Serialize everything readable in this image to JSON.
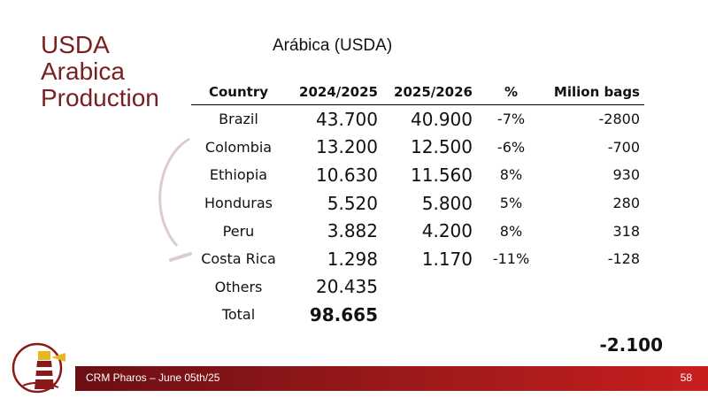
{
  "slide": {
    "title": "USDA Arabica Production",
    "subtitle": "Arábica (USDA)"
  },
  "table": {
    "headers": [
      "Country",
      "2024/2025",
      "2025/2026",
      "%",
      "Milion bags"
    ],
    "rows": [
      {
        "country": "Brazil",
        "y2024": "43.700",
        "y2025": "40.900",
        "pct": "-7%",
        "mbags": "-2800"
      },
      {
        "country": "Colombia",
        "y2024": "13.200",
        "y2025": "12.500",
        "pct": "-6%",
        "mbags": "-700"
      },
      {
        "country": "Ethiopia",
        "y2024": "10.630",
        "y2025": "11.560",
        "pct": "8%",
        "mbags": "930"
      },
      {
        "country": "Honduras",
        "y2024": "5.520",
        "y2025": "5.800",
        "pct": "5%",
        "mbags": "280"
      },
      {
        "country": "Peru",
        "y2024": "3.882",
        "y2025": "4.200",
        "pct": "8%",
        "mbags": "318"
      },
      {
        "country": "Costa Rica",
        "y2024": "1.298",
        "y2025": "1.170",
        "pct": "-11%",
        "mbags": "-128"
      },
      {
        "country": "Others",
        "y2024": "20.435",
        "y2025": "",
        "pct": "",
        "mbags": ""
      },
      {
        "country": "Total",
        "y2024": "98.665",
        "y2025": "",
        "pct": "",
        "mbags": ""
      }
    ],
    "grand_total": "-2.100"
  },
  "footer": {
    "text": "CRM Pharos –  June 05th/25",
    "page": "58"
  },
  "colors": {
    "title": "#7a1f1f",
    "footer_dark": "#6b0f14",
    "footer_light": "#c81e1e",
    "accent_gold": "#e8b820"
  },
  "icons": {
    "logo": "lighthouse-logo",
    "decoration": "arc-decoration"
  }
}
